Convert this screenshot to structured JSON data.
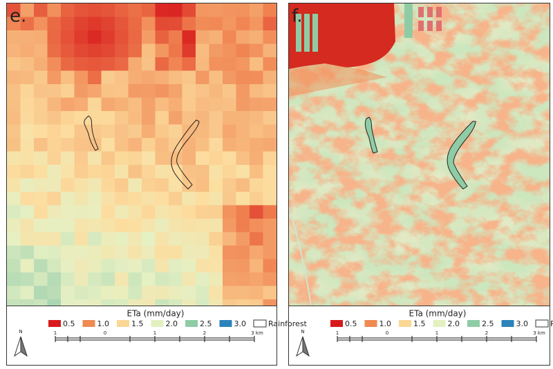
{
  "panels": [
    {
      "label": "e.",
      "legend": {
        "title": "ETa (mm/day)",
        "items": [
          {
            "label": "0.5",
            "color": "#d7191c"
          },
          {
            "label": "1.0",
            "color": "#ef8a51"
          },
          {
            "label": "1.5",
            "color": "#fbd794"
          },
          {
            "label": "2.0",
            "color": "#e3f0c0"
          },
          {
            "label": "2.5",
            "color": "#8fcca5"
          },
          {
            "label": "3.0",
            "color": "#2b83ba"
          },
          {
            "label": "Rainforest",
            "color": "#ffffff"
          }
        ]
      },
      "scale_labels": [
        "1",
        "0",
        "1",
        "2",
        "3 km"
      ],
      "north": "N"
    },
    {
      "label": "f.",
      "legend": {
        "title": "ETa (mm/day)",
        "items": [
          {
            "label": "0.5",
            "color": "#d7191c"
          },
          {
            "label": "1.0",
            "color": "#ef8a51"
          },
          {
            "label": "1.5",
            "color": "#fbd794"
          },
          {
            "label": "2.0",
            "color": "#e3f0c0"
          },
          {
            "label": "2.5",
            "color": "#8fcca5"
          },
          {
            "label": "3.0",
            "color": "#2b83ba"
          },
          {
            "label": "Rainforest",
            "color": "#ffffff"
          }
        ]
      },
      "scale_labels": [
        "1",
        "0",
        "1",
        "2",
        "3 km"
      ],
      "north": "N"
    }
  ]
}
